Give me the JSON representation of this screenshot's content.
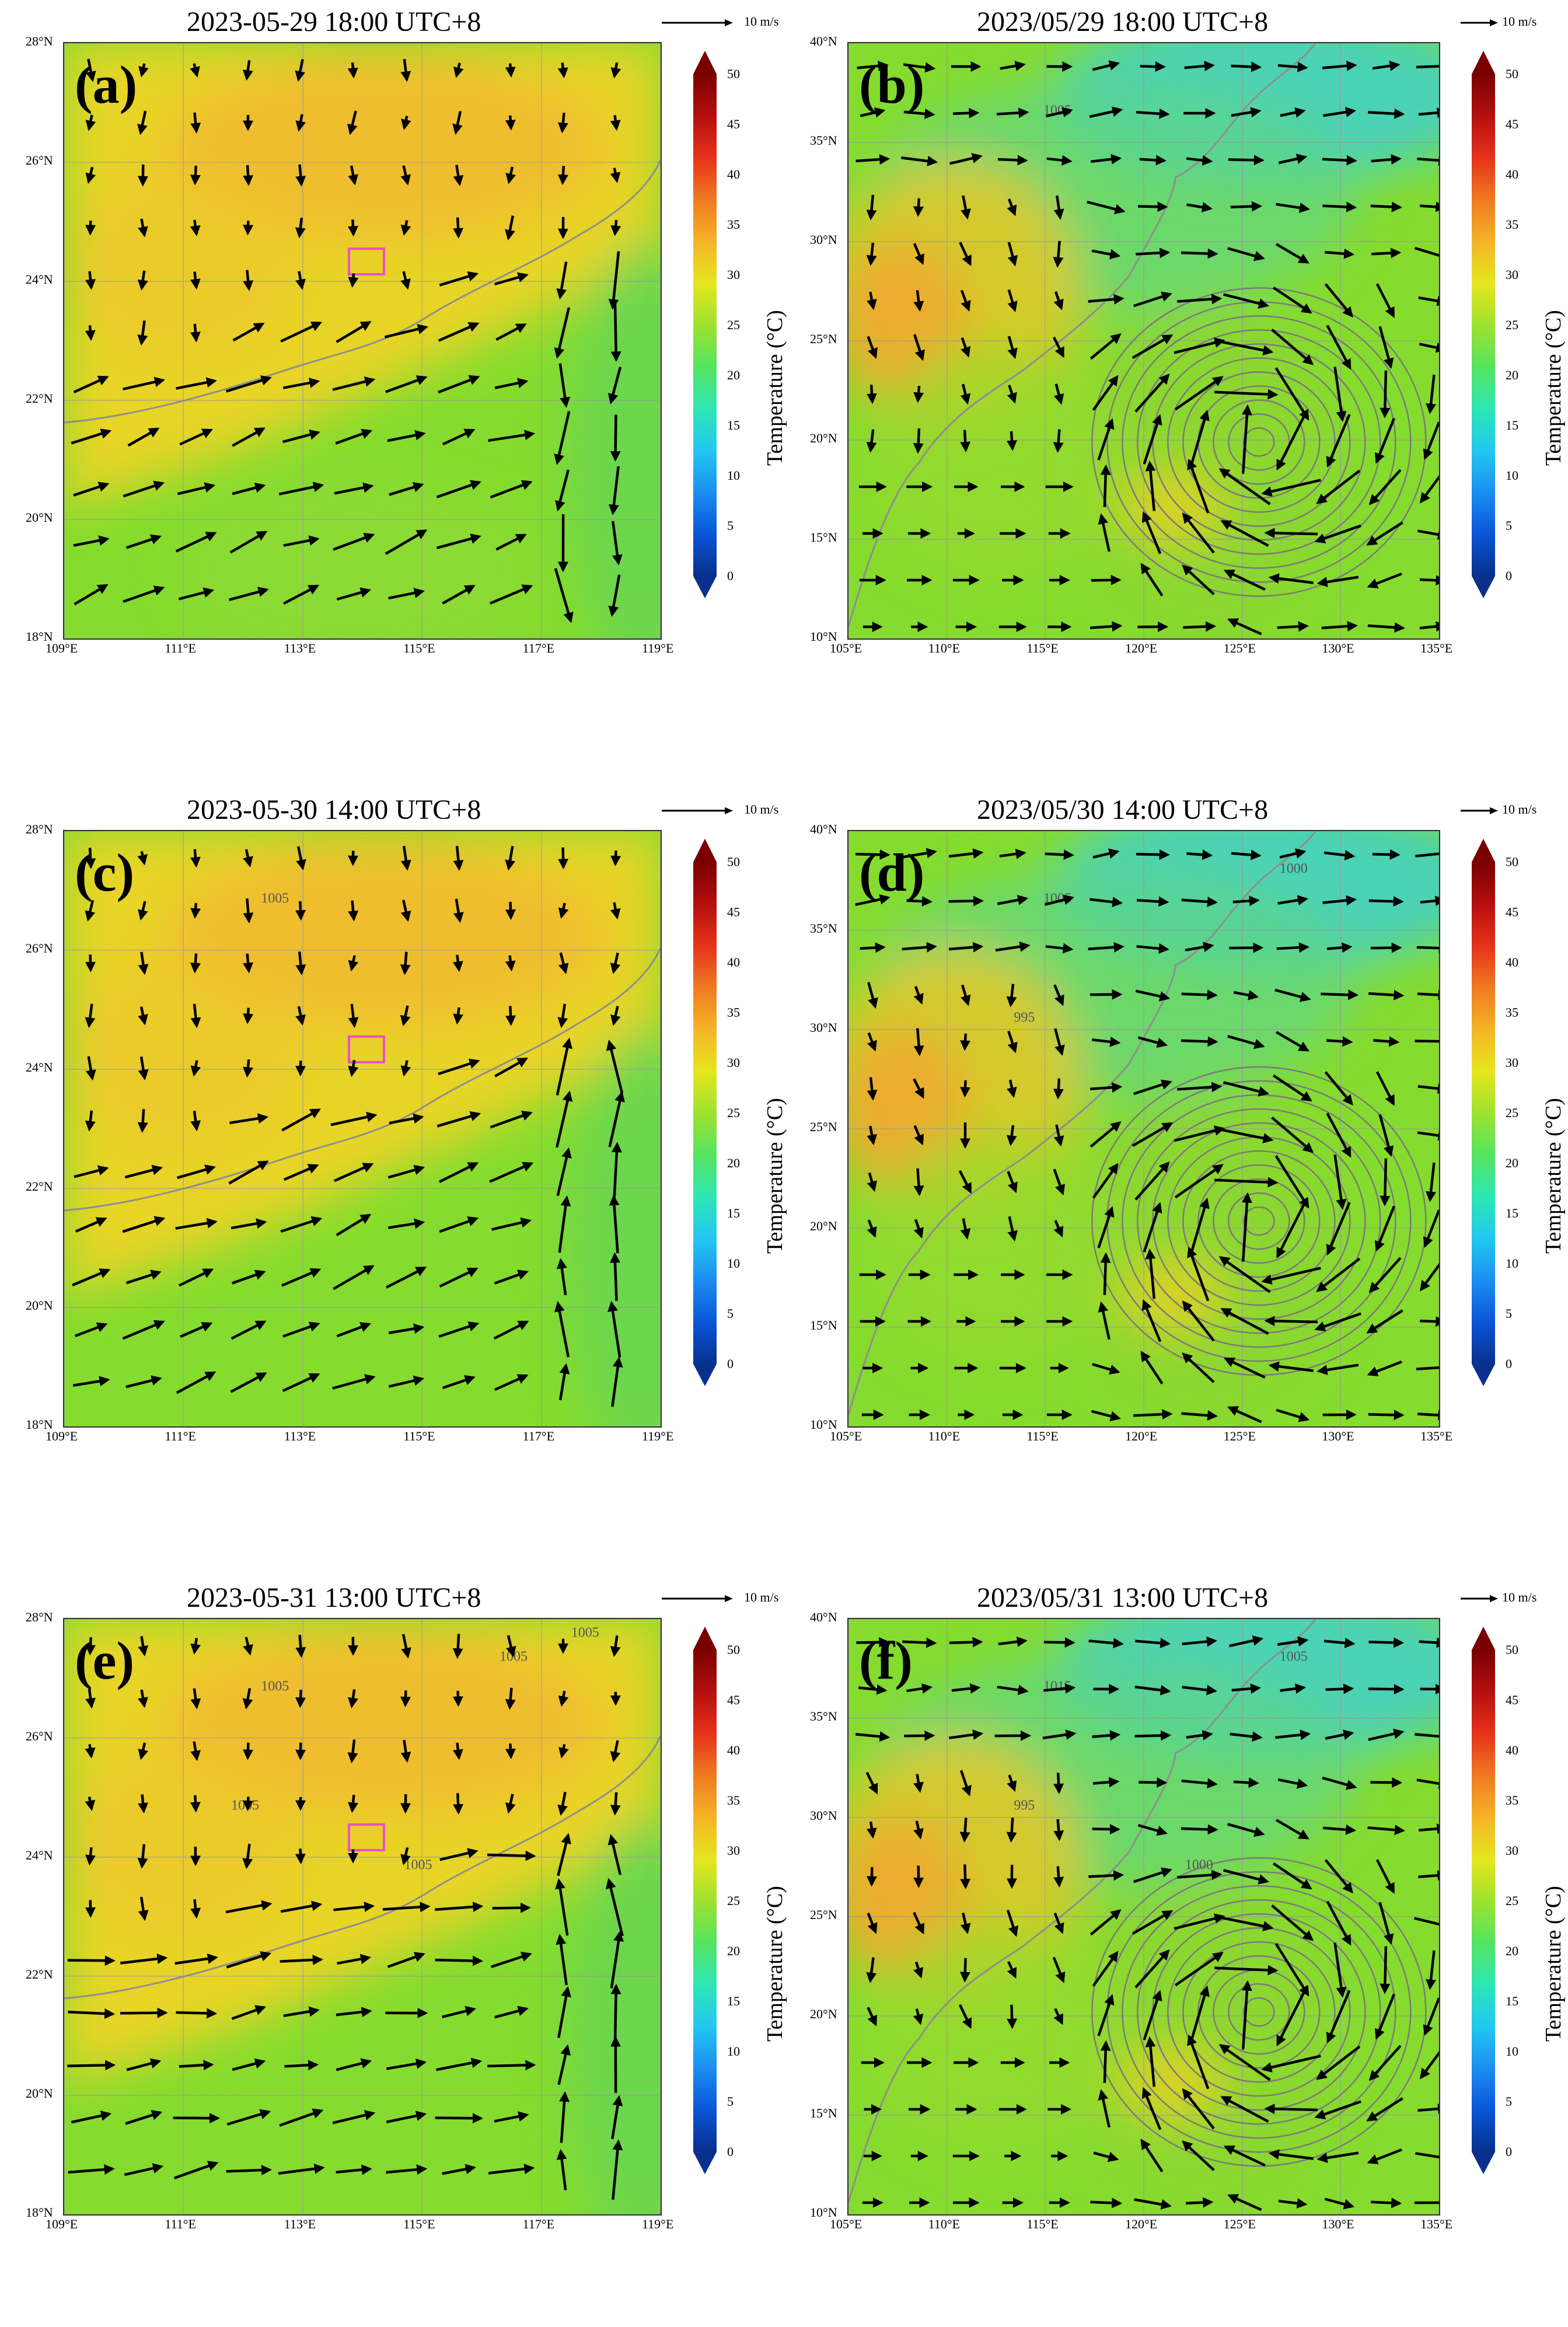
{
  "colorbar": {
    "label": "Temperature (°C)",
    "ticks": [
      "0",
      "5",
      "10",
      "15",
      "20",
      "25",
      "30",
      "35",
      "40",
      "45",
      "50"
    ],
    "colors": [
      "#08308c",
      "#0a55d8",
      "#1b8ef0",
      "#22c8f0",
      "#2ee6b4",
      "#55e460",
      "#9ee22e",
      "#e6e61e",
      "#f4b426",
      "#f07a22",
      "#e6321a",
      "#b40f0f",
      "#7a0000"
    ]
  },
  "reference_vector": "10 m/s",
  "panels": [
    {
      "id": "a",
      "letter": "(a)",
      "title": "2023-05-29 18:00 UTC+8",
      "lon_labels": [
        "109°E",
        "111°E",
        "113°E",
        "115°E",
        "117°E",
        "119°E"
      ],
      "lat_labels": [
        "28°N",
        "26°N",
        "24°N",
        "22°N",
        "20°N",
        "18°N"
      ],
      "contours": [],
      "box": true,
      "cyclone": false
    },
    {
      "id": "b",
      "letter": "(b)",
      "title": "2023/05/29 18:00 UTC+8",
      "lon_labels": [
        "105°E",
        "110°E",
        "115°E",
        "120°E",
        "125°E",
        "130°E",
        "135°E"
      ],
      "lat_labels": [
        "40°N",
        "35°N",
        "30°N",
        "25°N",
        "20°N",
        "15°N",
        "10°N"
      ],
      "contours": [
        "1005"
      ],
      "box": false,
      "cyclone": true
    },
    {
      "id": "c",
      "letter": "(c)",
      "title": "2023-05-30 14:00 UTC+8",
      "lon_labels": [
        "109°E",
        "111°E",
        "113°E",
        "115°E",
        "117°E",
        "119°E"
      ],
      "lat_labels": [
        "28°N",
        "26°N",
        "24°N",
        "22°N",
        "20°N",
        "18°N"
      ],
      "contours": [
        "1005"
      ],
      "box": true,
      "cyclone": false
    },
    {
      "id": "d",
      "letter": "(d)",
      "title": "2023/05/30 14:00 UTC+8",
      "lon_labels": [
        "105°E",
        "110°E",
        "115°E",
        "120°E",
        "125°E",
        "130°E",
        "135°E"
      ],
      "lat_labels": [
        "40°N",
        "35°N",
        "30°N",
        "25°N",
        "20°N",
        "15°N",
        "10°N"
      ],
      "contours": [
        "1005",
        "1000",
        "995"
      ],
      "box": false,
      "cyclone": true
    },
    {
      "id": "e",
      "letter": "(e)",
      "title": "2023-05-31 13:00 UTC+8",
      "lon_labels": [
        "109°E",
        "111°E",
        "113°E",
        "115°E",
        "117°E",
        "119°E"
      ],
      "lat_labels": [
        "28°N",
        "26°N",
        "24°N",
        "22°N",
        "20°N",
        "18°N"
      ],
      "contours": [
        "1005",
        "1005",
        "1005",
        "1005",
        "1005"
      ],
      "box": true,
      "cyclone": false
    },
    {
      "id": "f",
      "letter": "(f)",
      "title": "2023/05/31 13:00 UTC+8",
      "lon_labels": [
        "105°E",
        "110°E",
        "115°E",
        "120°E",
        "125°E",
        "130°E",
        "135°E"
      ],
      "lat_labels": [
        "40°N",
        "35°N",
        "30°N",
        "25°N",
        "20°N",
        "15°N",
        "10°N"
      ],
      "contours": [
        "1015",
        "1005",
        "995",
        "1000"
      ],
      "box": false,
      "cyclone": true
    }
  ]
}
